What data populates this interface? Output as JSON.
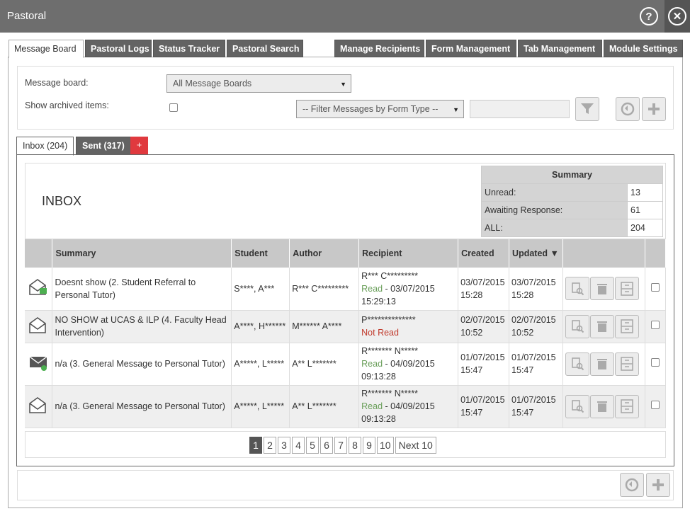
{
  "window": {
    "title": "Pastoral"
  },
  "tabs": [
    "Message Board",
    "Pastoral Logs",
    "Status Tracker",
    "Pastoral Search",
    "Manage Recipients",
    "Form Management",
    "Tab Management",
    "Module Settings"
  ],
  "filters": {
    "board_label": "Message board:",
    "board_value": "All Message Boards",
    "archived_label": "Show archived items:",
    "form_type_value": "-- Filter Messages by Form Type --"
  },
  "inner_tabs": {
    "inbox": "Inbox (204)",
    "sent": "Sent (317)",
    "add": "+"
  },
  "inbox": {
    "title": "INBOX",
    "summary": {
      "header": "Summary",
      "rows": [
        {
          "label": "Unread:",
          "value": "13"
        },
        {
          "label": "Awaiting Response:",
          "value": "61"
        },
        {
          "label": "ALL:",
          "value": "204"
        }
      ]
    },
    "columns": [
      "Summary",
      "Student",
      "Author",
      "Recipient",
      "Created",
      "Updated"
    ],
    "sort_indicator": "▼",
    "rows": [
      {
        "icon": "envelope-open-green-flag-icon",
        "summary": "Doesnt show (2. Student Referral to Personal Tutor)",
        "student": "S****, A***",
        "author": "R*** C*********",
        "recipient_name": "R*** C*********",
        "status": "Read",
        "status_date": " - 03/07/2015 15:29:13",
        "created": "03/07/2015 15:28",
        "updated": "03/07/2015 15:28"
      },
      {
        "icon": "envelope-open-icon",
        "summary": "NO SHOW at UCAS & ILP (4. Faculty Head Intervention)",
        "student": "A****, H******",
        "author": "M****** A****",
        "recipient_name": "P**************",
        "status": "Not Read",
        "status_date": "",
        "created": "02/07/2015 10:52",
        "updated": "02/07/2015 10:52"
      },
      {
        "icon": "envelope-closed-green-dot-icon",
        "summary": "n/a (3. General Message to Personal Tutor)",
        "student": "A*****, L*****",
        "author": "A** L*******",
        "recipient_name": "R******* N*****",
        "status": "Read",
        "status_date": " - 04/09/2015 09:13:28",
        "created": "01/07/2015 15:47",
        "updated": "01/07/2015 15:47"
      },
      {
        "icon": "envelope-open-icon",
        "summary": "n/a (3. General Message to Personal Tutor)",
        "student": "A*****, L*****",
        "author": "A** L*******",
        "recipient_name": "R******* N*****",
        "status": "Read",
        "status_date": " - 04/09/2015 09:13:28",
        "created": "01/07/2015 15:47",
        "updated": "01/07/2015 15:47"
      }
    ],
    "pages": [
      "1",
      "2",
      "3",
      "4",
      "5",
      "6",
      "7",
      "8",
      "9",
      "10"
    ],
    "current_page": "1",
    "next_label": "Next 10"
  },
  "colors": {
    "title_bar": "#6e6e6e",
    "tab_dark": "#636363",
    "add_tab": "#e0393e",
    "read": "#6a9f5a",
    "not_read": "#c0392b"
  }
}
